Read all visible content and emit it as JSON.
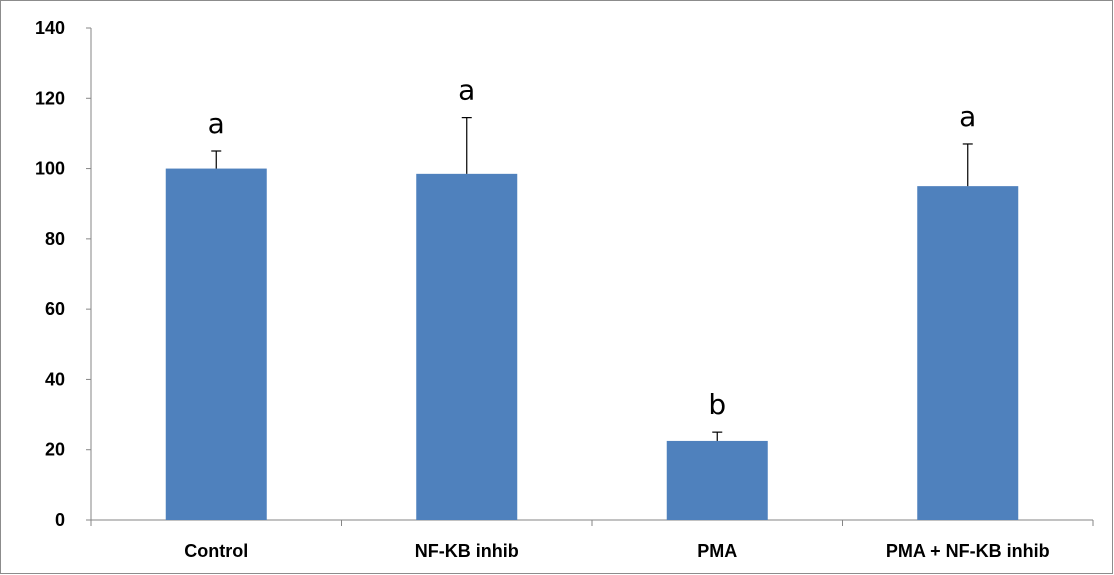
{
  "chart_data": {
    "type": "bar",
    "title": "",
    "xlabel": "",
    "ylabel": "",
    "ylim": [
      0,
      140
    ],
    "yticks": [
      0,
      20,
      40,
      60,
      80,
      100,
      120,
      140
    ],
    "grid": false,
    "categories": [
      "Control",
      "NF-KB inhib",
      "PMA",
      "PMA + NF-KB inhib"
    ],
    "series": [
      {
        "values": [
          100,
          98.5,
          22.5,
          95
        ],
        "error_upper": [
          5,
          16,
          2.5,
          12
        ],
        "significance_labels": [
          "a",
          "a",
          "b",
          "a"
        ],
        "color": "#4f81bd"
      }
    ]
  }
}
